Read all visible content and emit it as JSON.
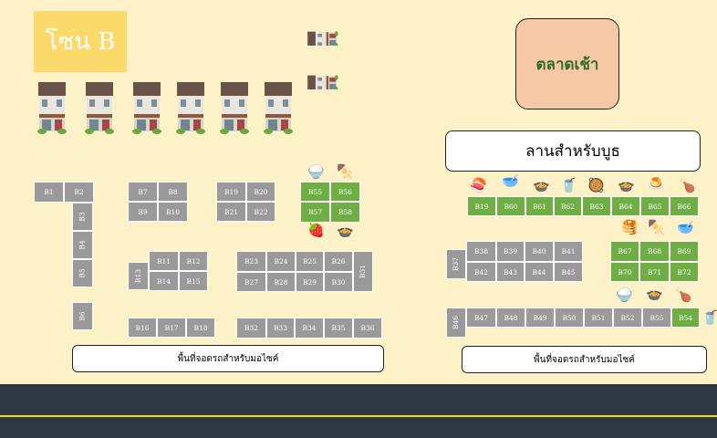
{
  "zone_label": "โซน B",
  "market_label": "ตลาดเช้า",
  "plaza_label": "ลานสำหรับบูธ",
  "parking_left": "พื้นที่จอดรถสำหรับมอไซค์",
  "parking_right": "พื้นที่จอดรถสำหรับมอไซค์",
  "booths": {
    "B1": "B1",
    "B2": "B2",
    "B3": "B3",
    "B4": "B4",
    "B5": "B5",
    "B6": "B6",
    "B7": "B7",
    "B8": "B8",
    "B9": "B9",
    "B10": "B10",
    "B11": "B11",
    "B12": "B12",
    "B13": "B13",
    "B14": "B14",
    "B15": "B15",
    "B16": "B16",
    "B17": "B17",
    "B18": "B18",
    "B19": "B19",
    "B20": "B20",
    "B21": "B21",
    "B22": "B22",
    "B23": "B23",
    "B24": "B24",
    "B25": "B25",
    "B26": "B26",
    "B27": "B27",
    "B28": "B28",
    "B29": "B29",
    "B30": "B30",
    "B31": "B31",
    "B32": "B32",
    "B33": "B33",
    "B34": "B34",
    "B35a": "B35",
    "B35b": "B35",
    "B36": "B36",
    "B37": "B37",
    "B38": "B38",
    "B39": "B39",
    "B40": "B40",
    "B41": "B41",
    "B42": "B42",
    "B43": "B43",
    "B44": "B44",
    "B45": "B45",
    "B46": "B46",
    "B47": "B47",
    "B48": "B48",
    "B49": "B49",
    "B50": "B50",
    "B51": "B51",
    "B52": "B52",
    "B54": "B54",
    "B55": "B55",
    "B56": "B56",
    "B57": "B57",
    "B58": "B58",
    "B55r": "B55",
    "B59": "B19",
    "B60": "B60",
    "B61": "B61",
    "B62": "B62",
    "B63": "B63",
    "B64": "B64",
    "B65": "B65",
    "B66": "B66",
    "B67": "B67",
    "B68": "B68",
    "B69": "B69",
    "B70": "B70",
    "B71": "B71",
    "B72": "B72"
  },
  "colors": {
    "background": "#fdf1c8",
    "booth_gray": "#9a9a9a",
    "booth_green": "#6fae45",
    "road": "#2e3842",
    "road_line": "#f3d21b"
  },
  "icons": [
    "rice-bowl-icon",
    "skewer-icon",
    "strawberry-icon",
    "tom-yum-icon",
    "sushi-icon",
    "mortar-icon",
    "coffee-icon",
    "wok-icon",
    "pancake-icon",
    "chicken-icon",
    "house-icon"
  ]
}
